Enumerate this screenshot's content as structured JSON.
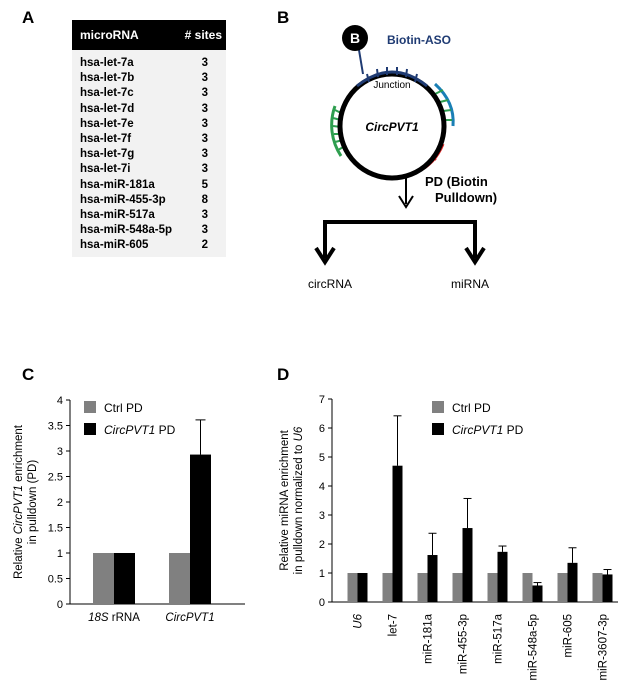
{
  "panels": {
    "a": "A",
    "b": "B",
    "c": "C",
    "d": "D"
  },
  "table": {
    "headers": [
      "microRNA",
      "# sites"
    ],
    "rows": [
      [
        "hsa-let-7a",
        "3"
      ],
      [
        "hsa-let-7b",
        "3"
      ],
      [
        "hsa-let-7c",
        "3"
      ],
      [
        "hsa-let-7d",
        "3"
      ],
      [
        "hsa-let-7e",
        "3"
      ],
      [
        "hsa-let-7f",
        "3"
      ],
      [
        "hsa-let-7g",
        "3"
      ],
      [
        "hsa-let-7i",
        "3"
      ],
      [
        "hsa-miR-181a",
        "5"
      ],
      [
        "hsa-miR-455-3p",
        "8"
      ],
      [
        "hsa-miR-517a",
        "3"
      ],
      [
        "hsa-miR-548a-5p",
        "3"
      ],
      [
        "hsa-miR-605",
        "2"
      ]
    ]
  },
  "diagram": {
    "biotin_badge": "B",
    "biotin_label": "Biotin-ASO",
    "junction_label": "Junction",
    "circle_label": "CircPVT1",
    "pulldown_label_line1": "PD (Biotin",
    "pulldown_label_line2": "Pulldown)",
    "left_output": "circRNA",
    "right_output": "miRNA",
    "colors": {
      "aso": "#1f3b73",
      "green": "#2e9e4f",
      "red": "#e02020",
      "teal": "#1a7fb5"
    }
  },
  "chart_data": [
    {
      "type": "bar",
      "panel": "C",
      "categories": [
        "18S rRNA",
        "CircPVT1"
      ],
      "category_labels": [
        [
          "18S",
          " rRNA"
        ],
        [
          "CircPVT1",
          ""
        ]
      ],
      "category_italic": [
        [
          true,
          false
        ],
        [
          true,
          false
        ]
      ],
      "series": [
        {
          "name": "Ctrl PD",
          "color": "#808080",
          "values": [
            1.0,
            1.0
          ],
          "errors": [
            0,
            0
          ]
        },
        {
          "name": "CircPVT1 PD",
          "color": "#000000",
          "values": [
            1.0,
            2.93
          ],
          "errors": [
            0,
            0.68
          ]
        }
      ],
      "ylabel_line1": [
        "Relative ",
        "CircPVT1",
        " enrichment"
      ],
      "ylabel_line2": "in pulldown (PD)",
      "ylim": [
        0,
        4
      ],
      "yticks": [
        "0",
        "0.5",
        "1",
        "1.5",
        "2",
        "2.5",
        "3",
        "3.5",
        "4"
      ],
      "legend_placement": "top-left"
    },
    {
      "type": "bar",
      "panel": "D",
      "categories": [
        "U6",
        "let-7",
        "miR-181a",
        "miR-455-3p",
        "miR-517a",
        "miR-548a-5p",
        "miR-605",
        "miR-3607-3p"
      ],
      "category_italic": [
        true,
        false,
        false,
        false,
        false,
        false,
        false,
        false
      ],
      "series": [
        {
          "name": "Ctrl PD",
          "color": "#808080",
          "values": [
            1,
            1,
            1,
            1,
            1,
            1,
            1,
            1
          ],
          "errors": [
            0,
            0,
            0,
            0,
            0,
            0,
            0,
            0
          ]
        },
        {
          "name": "CircPVT1 PD",
          "color": "#000000",
          "values": [
            1.0,
            4.7,
            1.62,
            2.55,
            1.73,
            0.57,
            1.35,
            0.95
          ],
          "errors": [
            0,
            1.72,
            0.75,
            1.02,
            0.2,
            0.1,
            0.52,
            0.17
          ]
        }
      ],
      "ylabel_line1": "Relative miRNA enrichment",
      "ylabel_line2": [
        "in pulldown normalized to ",
        "U6"
      ],
      "ylim": [
        0,
        7
      ],
      "yticks": [
        "0",
        "1",
        "2",
        "3",
        "4",
        "5",
        "6",
        "7"
      ],
      "legend_placement": "top-left"
    }
  ]
}
